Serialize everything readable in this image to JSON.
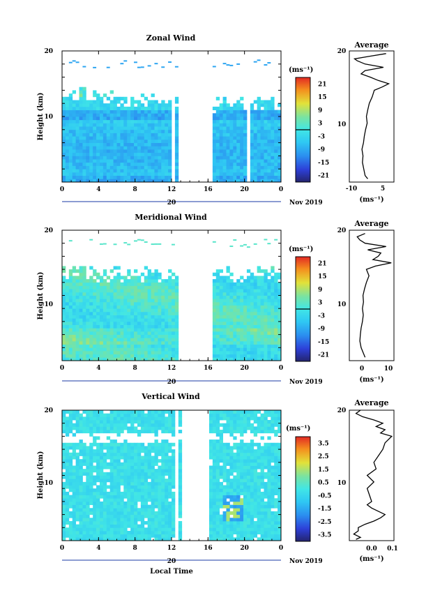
{
  "chart_data": [
    {
      "type": "heatmap",
      "title": "Zonal Wind",
      "ylabel": "Height (km)",
      "ylim": [
        0,
        20
      ],
      "y_ticks": [
        "20",
        "10"
      ],
      "x_ticks": [
        "0",
        "4",
        "8",
        "12",
        "16",
        "20",
        "0"
      ],
      "xlim": [
        0,
        24
      ],
      "date_tick": "20",
      "date_label": "Nov 2019",
      "colorbar": {
        "unit": "(ms⁻¹)",
        "range": [
          -24,
          24
        ],
        "ticks": [
          "21",
          "15",
          "9",
          "3",
          "-3",
          "-9",
          "-15",
          "-21"
        ],
        "contour_at": 0
      },
      "data_gap_hours": [
        [
          12.8,
          16.5
        ]
      ],
      "average": {
        "title": "Average",
        "xlabel": "(ms⁻¹)",
        "xlim": [
          -10,
          7
        ],
        "x_ticks": [
          "-10",
          "5"
        ],
        "y_ticks": [
          "20",
          "10"
        ],
        "profile": [
          [
            0.5,
            -3
          ],
          [
            1,
            -4
          ],
          [
            2,
            -4.5
          ],
          [
            3,
            -5
          ],
          [
            4,
            -4.8
          ],
          [
            5,
            -5.2
          ],
          [
            6,
            -4.6
          ],
          [
            7,
            -4.3
          ],
          [
            8,
            -3.8
          ],
          [
            9,
            -3.2
          ],
          [
            10,
            -3.5
          ],
          [
            11,
            -3
          ],
          [
            12,
            -2.4
          ],
          [
            13,
            -1.3
          ],
          [
            14,
            -0.5
          ],
          [
            14.5,
            2.5
          ],
          [
            15,
            5
          ],
          [
            15.5,
            1
          ],
          [
            16,
            -2
          ],
          [
            16.5,
            -5.5
          ],
          [
            17,
            -4
          ],
          [
            17.5,
            3
          ],
          [
            18,
            -4
          ],
          [
            18.5,
            -7
          ],
          [
            18.8,
            -8
          ],
          [
            19.2,
            -2
          ],
          [
            19.6,
            4
          ]
        ]
      }
    },
    {
      "type": "heatmap",
      "title": "Meridional Wind",
      "ylabel": "Height (km)",
      "ylim": [
        0,
        20
      ],
      "y_ticks": [
        "20",
        "10"
      ],
      "x_ticks": [
        "0",
        "4",
        "8",
        "12",
        "16",
        "20",
        "0"
      ],
      "xlim": [
        0,
        24
      ],
      "date_tick": "20",
      "date_label": "Nov 2019",
      "colorbar": {
        "unit": "(ms⁻¹)",
        "range": [
          -24,
          24
        ],
        "ticks": [
          "21",
          "15",
          "9",
          "3",
          "-3",
          "-9",
          "-15",
          "-21"
        ],
        "contour_at": 0
      },
      "data_gap_hours": [
        [
          12.8,
          16.5
        ]
      ],
      "average": {
        "title": "Average",
        "xlabel": "(ms⁻¹)",
        "xlim": [
          -5,
          12
        ],
        "x_ticks": [
          "0",
          "10"
        ],
        "y_ticks": [
          "20",
          "10"
        ],
        "profile": [
          [
            0.5,
            1
          ],
          [
            1,
            0.5
          ],
          [
            2,
            -0.5
          ],
          [
            3,
            -1
          ],
          [
            4,
            -0.8
          ],
          [
            5,
            -0.5
          ],
          [
            6,
            0
          ],
          [
            7,
            0.3
          ],
          [
            8,
            0
          ],
          [
            9,
            0.4
          ],
          [
            10,
            0.2
          ],
          [
            11,
            0.8
          ],
          [
            12,
            1.5
          ],
          [
            13,
            2.5
          ],
          [
            14,
            1.5
          ],
          [
            14.5,
            5
          ],
          [
            15,
            11
          ],
          [
            15.5,
            4
          ],
          [
            16,
            6
          ],
          [
            16.5,
            7
          ],
          [
            17,
            2
          ],
          [
            17.5,
            9
          ],
          [
            18,
            1
          ],
          [
            18.5,
            -1
          ],
          [
            19,
            -2
          ],
          [
            19.5,
            1
          ]
        ]
      }
    },
    {
      "type": "heatmap",
      "title": "Vertical Wind",
      "ylabel": "Height (km)",
      "xlabel": "Local Time",
      "ylim": [
        0,
        20
      ],
      "y_ticks": [
        "20",
        "10"
      ],
      "x_ticks": [
        "0",
        "4",
        "8",
        "12",
        "16",
        "20",
        "0"
      ],
      "xlim": [
        0,
        24
      ],
      "date_tick": "20",
      "date_label": "Nov 2019",
      "colorbar": {
        "unit": "(ms⁻¹)",
        "range": [
          -4,
          4
        ],
        "ticks": [
          "3.5",
          "2.5",
          "1.5",
          "0.5",
          "-0.5",
          "-1.5",
          "-2.5",
          "-3.5"
        ],
        "contour_at": null
      },
      "data_gap_hours": [
        [
          13.3,
          16.3
        ]
      ],
      "average": {
        "title": "Average",
        "xlabel": "(ms⁻¹)",
        "xlim": [
          -0.1,
          0.1
        ],
        "x_ticks": [
          "0.0",
          "0.1"
        ],
        "y_ticks": [
          "20",
          "10"
        ],
        "profile": [
          [
            0.2,
            -0.07
          ],
          [
            0.5,
            -0.05
          ],
          [
            1,
            -0.08
          ],
          [
            1.5,
            -0.06
          ],
          [
            2,
            -0.06
          ],
          [
            2.5,
            -0.03
          ],
          [
            3,
            0.01
          ],
          [
            3.5,
            0.04
          ],
          [
            4,
            0.06
          ],
          [
            4.5,
            0.03
          ],
          [
            5,
            0.0
          ],
          [
            5.5,
            -0.02
          ],
          [
            6,
            0.0
          ],
          [
            7,
            -0.01
          ],
          [
            8,
            -0.02
          ],
          [
            9,
            0.01
          ],
          [
            10,
            -0.02
          ],
          [
            11,
            0.02
          ],
          [
            12,
            0.01
          ],
          [
            13,
            0.03
          ],
          [
            14,
            0.05
          ],
          [
            15,
            0.06
          ],
          [
            16,
            0.09
          ],
          [
            16.5,
            0.04
          ],
          [
            17,
            0.06
          ],
          [
            17.5,
            0.02
          ],
          [
            18,
            0.05
          ],
          [
            18.5,
            0.01
          ],
          [
            19,
            -0.04
          ],
          [
            19.5,
            -0.07
          ],
          [
            20,
            -0.05
          ]
        ]
      }
    }
  ]
}
